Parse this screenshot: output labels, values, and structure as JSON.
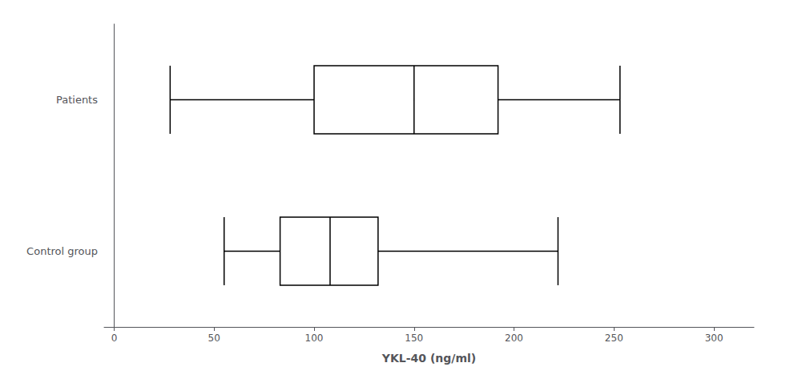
{
  "chart_data": {
    "type": "boxplot",
    "orientation": "horizontal",
    "categories": [
      "Patients",
      "Control group"
    ],
    "values": [
      [
        28,
        100,
        150,
        192,
        253
      ],
      [
        55,
        83,
        108,
        132,
        222
      ]
    ],
    "xlabel": "YKL-40 (ng/ml)",
    "xlim": [
      -5,
      320
    ],
    "xticks": [
      0,
      50,
      100,
      150,
      200,
      250,
      300
    ],
    "color": "#000000",
    "grid": false
  }
}
